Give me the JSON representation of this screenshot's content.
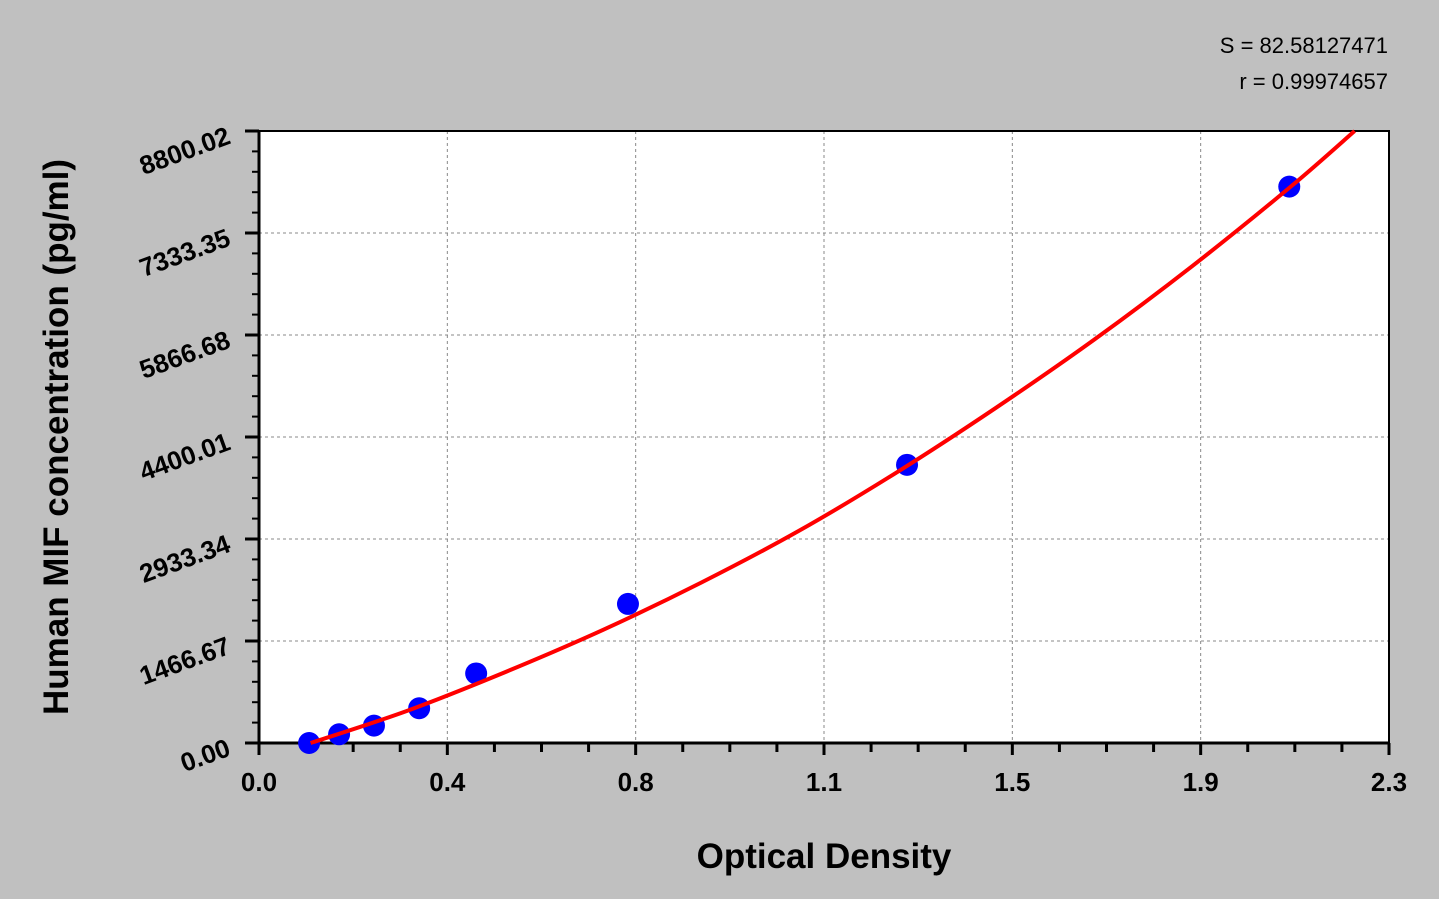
{
  "chart_data": {
    "type": "scatter",
    "title": "",
    "xlabel": "Optical Density",
    "ylabel": "Human MIF concentration (pg/ml)",
    "xlim": [
      0.0,
      2.3
    ],
    "ylim": [
      0.0,
      8800.02
    ],
    "x_tick_labels": [
      "0.0",
      "0.4",
      "0.8",
      "1.1",
      "1.5",
      "1.9",
      "2.3"
    ],
    "y_tick_labels": [
      "0.00",
      "1466.67",
      "2933.34",
      "4400.01",
      "5866.68",
      "7333.35",
      "8800.02"
    ],
    "grid": true,
    "annotations": {
      "s": "S = 82.58127471",
      "r": "r = 0.99974657"
    },
    "series": [
      {
        "kind": "points",
        "color": "#0000ff",
        "x": [
          0.102,
          0.163,
          0.234,
          0.326,
          0.442,
          0.751,
          1.319,
          2.097
        ],
        "y": [
          0,
          125,
          250,
          500,
          1000,
          2000,
          4000,
          8000
        ]
      },
      {
        "kind": "fit-curve",
        "color": "#ff0000",
        "x": [
          0.105,
          0.3,
          0.5,
          0.7,
          0.9,
          1.1,
          1.3,
          1.5,
          1.7,
          1.9,
          2.1,
          2.23
        ],
        "y": [
          0,
          459,
          1016,
          1626,
          2306,
          3055,
          3900,
          4820,
          5800,
          6860,
          8000,
          8800
        ]
      }
    ]
  }
}
